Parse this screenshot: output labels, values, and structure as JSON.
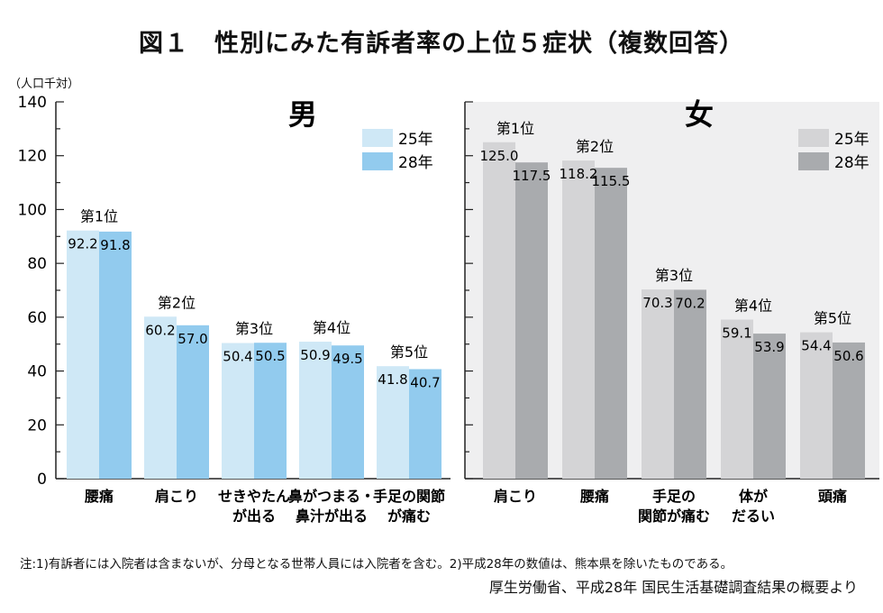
{
  "title": "図１　性別にみた有訴者率の上位５症状（複数回答）",
  "unit": "（人口千対）",
  "note": "注:1)有訴者には入院者は含まないが、分母となる世帯人員には入院者を含む。2)平成28年の数値は、熊本県を除いたものである。",
  "source": "厚生労働省、平成28年 国民生活基礎調査結果の概要より",
  "colors": {
    "male_25": "#cfe8f6",
    "male_28": "#92cbee",
    "female_25": "#d4d4d6",
    "female_28": "#a9abae",
    "female_panel_bg": "#efeff0"
  },
  "chart_data": [
    {
      "type": "bar",
      "title": "男",
      "categories": [
        [
          "腰痛"
        ],
        [
          "肩こり"
        ],
        [
          "せきやたん",
          "が出る"
        ],
        [
          "鼻がつまる・",
          "鼻汁が出る"
        ],
        [
          "手足の関節",
          "が痛む"
        ]
      ],
      "ranks": [
        "第1位",
        "第2位",
        "第3位",
        "第4位",
        "第5位"
      ],
      "series": [
        {
          "name": "25年",
          "values": [
            92.2,
            60.2,
            50.4,
            50.9,
            41.8
          ]
        },
        {
          "name": "28年",
          "values": [
            91.8,
            57.0,
            50.5,
            49.5,
            40.7
          ]
        }
      ],
      "ylim": [
        0,
        140
      ],
      "yticks": [
        0,
        20,
        40,
        60,
        80,
        100,
        120,
        140
      ],
      "legend_position": "top-right"
    },
    {
      "type": "bar",
      "title": "女",
      "categories": [
        [
          "肩こり"
        ],
        [
          "腰痛"
        ],
        [
          "手足の",
          "関節が痛む"
        ],
        [
          "体が",
          "だるい"
        ],
        [
          "頭痛"
        ]
      ],
      "ranks": [
        "第1位",
        "第2位",
        "第3位",
        "第4位",
        "第5位"
      ],
      "series": [
        {
          "name": "25年",
          "values": [
            125.0,
            118.2,
            70.3,
            59.1,
            54.4
          ]
        },
        {
          "name": "28年",
          "values": [
            117.5,
            115.5,
            70.2,
            53.9,
            50.6
          ]
        }
      ],
      "ylim": [
        0,
        140
      ],
      "legend_position": "top-right"
    }
  ]
}
